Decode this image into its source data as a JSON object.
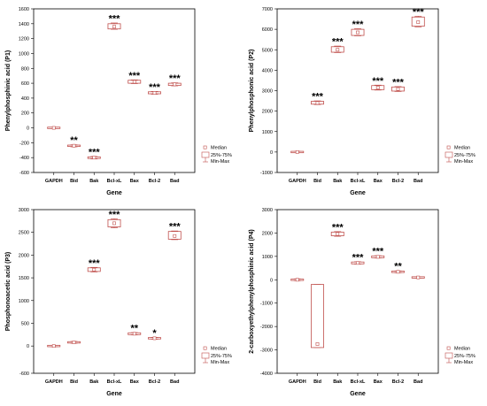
{
  "colors": {
    "box": "#c0504d",
    "axis": "#000000",
    "grid": "#999999"
  },
  "legend": {
    "median": "Median",
    "iqr": "25%-75%",
    "range": "Min-Max"
  },
  "chart_data": [
    {
      "type": "box",
      "ylabel": "Phenylphosphinic acid (P1)",
      "xlabel": "Gene",
      "ylim": [
        -600,
        1600
      ],
      "yticks": [
        "-600",
        "-400",
        "-200",
        "0",
        "200",
        "400",
        "600",
        "800",
        "1000",
        "1200",
        "1400",
        "1600"
      ],
      "categories": [
        "GAPDH",
        "Bid",
        "Bak",
        "Bcl-xL",
        "Bax",
        "Bcl-2",
        "Bad"
      ],
      "series": [
        {
          "median": 0,
          "q1": -5,
          "q3": 5,
          "min": -8,
          "max": 8,
          "sig": ""
        },
        {
          "median": -240,
          "q1": -250,
          "q3": -232,
          "min": -255,
          "max": -228,
          "sig": "**"
        },
        {
          "median": -400,
          "q1": -412,
          "q3": -390,
          "min": -418,
          "max": -385,
          "sig": "***"
        },
        {
          "median": 1360,
          "q1": 1330,
          "q3": 1400,
          "min": 1325,
          "max": 1410,
          "sig": "***"
        },
        {
          "median": 620,
          "q1": 600,
          "q3": 640,
          "min": 595,
          "max": 645,
          "sig": "***"
        },
        {
          "median": 470,
          "q1": 458,
          "q3": 485,
          "min": 452,
          "max": 490,
          "sig": "***"
        },
        {
          "median": 585,
          "q1": 570,
          "q3": 600,
          "min": 565,
          "max": 605,
          "sig": "***"
        }
      ]
    },
    {
      "type": "box",
      "ylabel": "Phenylphosphonic acid (P2)",
      "xlabel": "Gene",
      "ylim": [
        -1000,
        7000
      ],
      "yticks": [
        "-1000",
        "0",
        "1000",
        "2000",
        "3000",
        "4000",
        "5000",
        "6000",
        "7000"
      ],
      "categories": [
        "GAPDH",
        "Bid",
        "Bak",
        "Bcl-xL",
        "Bax",
        "Bcl-2",
        "Bad"
      ],
      "series": [
        {
          "median": 0,
          "q1": -20,
          "q3": 20,
          "min": -30,
          "max": 30,
          "sig": ""
        },
        {
          "median": 2400,
          "q1": 2340,
          "q3": 2480,
          "min": 2320,
          "max": 2500,
          "sig": "***"
        },
        {
          "median": 5000,
          "q1": 4880,
          "q3": 5150,
          "min": 4860,
          "max": 5180,
          "sig": "***"
        },
        {
          "median": 5850,
          "q1": 5700,
          "q3": 6000,
          "min": 5680,
          "max": 6030,
          "sig": "***"
        },
        {
          "median": 3150,
          "q1": 3050,
          "q3": 3250,
          "min": 3030,
          "max": 3270,
          "sig": "***"
        },
        {
          "median": 3080,
          "q1": 2980,
          "q3": 3180,
          "min": 2960,
          "max": 3200,
          "sig": "***"
        },
        {
          "median": 6350,
          "q1": 6150,
          "q3": 6600,
          "min": 6120,
          "max": 6640,
          "sig": "***"
        }
      ]
    },
    {
      "type": "box",
      "ylabel": "Phosphonoacetic acid (P3)",
      "xlabel": "Gene",
      "ylim": [
        -600,
        3000
      ],
      "yticks": [
        "-600",
        "0",
        "500",
        "1000",
        "1500",
        "2000",
        "2500",
        "3000"
      ],
      "categories": [
        "GAPDH",
        "Bid",
        "Bak",
        "Bcl-xL",
        "Bax",
        "Bcl-2",
        "Bad"
      ],
      "series": [
        {
          "median": 0,
          "q1": -10,
          "q3": 10,
          "min": -15,
          "max": 15,
          "sig": ""
        },
        {
          "median": 80,
          "q1": 65,
          "q3": 95,
          "min": 60,
          "max": 100,
          "sig": ""
        },
        {
          "median": 1680,
          "q1": 1640,
          "q3": 1720,
          "min": 1630,
          "max": 1730,
          "sig": "***"
        },
        {
          "median": 2700,
          "q1": 2620,
          "q3": 2780,
          "min": 2600,
          "max": 2800,
          "sig": "***"
        },
        {
          "median": 270,
          "q1": 250,
          "q3": 290,
          "min": 245,
          "max": 295,
          "sig": "**"
        },
        {
          "median": 170,
          "q1": 155,
          "q3": 185,
          "min": 150,
          "max": 190,
          "sig": "*"
        },
        {
          "median": 2420,
          "q1": 2350,
          "q3": 2520,
          "min": 2340,
          "max": 2530,
          "sig": "***"
        }
      ]
    },
    {
      "type": "box",
      "ylabel": "2-carboxyethylphenylphosphinic acid (P4)",
      "xlabel": "Gene",
      "ylim": [
        -4000,
        3000
      ],
      "yticks": [
        "-4000",
        "-3000",
        "-2000",
        "-1000",
        "0",
        "1000",
        "2000",
        "3000"
      ],
      "categories": [
        "GAPDH",
        "Bid",
        "Bak",
        "Bcl-xL",
        "Bax",
        "Bcl-2",
        "Bad"
      ],
      "series": [
        {
          "median": 0,
          "q1": -30,
          "q3": 30,
          "min": -40,
          "max": 40,
          "sig": ""
        },
        {
          "median": -2750,
          "q1": -2900,
          "q3": -200,
          "min": -2900,
          "max": -200,
          "sig": ""
        },
        {
          "median": 1960,
          "q1": 1880,
          "q3": 2040,
          "min": 1860,
          "max": 2060,
          "sig": "***"
        },
        {
          "median": 720,
          "q1": 680,
          "q3": 760,
          "min": 670,
          "max": 770,
          "sig": "***"
        },
        {
          "median": 980,
          "q1": 940,
          "q3": 1020,
          "min": 930,
          "max": 1030,
          "sig": "***"
        },
        {
          "median": 340,
          "q1": 310,
          "q3": 370,
          "min": 300,
          "max": 380,
          "sig": "**"
        },
        {
          "median": 100,
          "q1": 80,
          "q3": 120,
          "min": 75,
          "max": 125,
          "sig": ""
        }
      ]
    }
  ]
}
